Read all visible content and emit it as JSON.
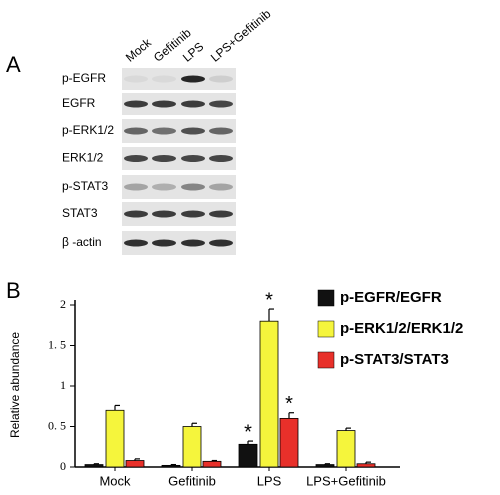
{
  "panel_a": {
    "label": "A",
    "lanes": [
      "Mock",
      "Gefitinib",
      "LPS",
      "LPS+Gefitinib"
    ],
    "rows": [
      "p-EGFR",
      "EGFR",
      "p-ERK1/2",
      "ERK1/2",
      "p-STAT3",
      "STAT3",
      "β -actin"
    ]
  },
  "chart_data": {
    "type": "bar",
    "panel_label": "B",
    "ylabel": "Relative abundance",
    "categories": [
      "Mock",
      "Gefitinib",
      "LPS",
      "LPS+Gefitinib"
    ],
    "series": [
      {
        "name": "p-EGFR/EGFR",
        "color": "#111111",
        "values": [
          0.03,
          0.02,
          0.28,
          0.03
        ],
        "errors": [
          0.01,
          0.01,
          0.04,
          0.01
        ],
        "markers": [
          null,
          null,
          "*",
          null
        ]
      },
      {
        "name": "p-ERK1/2/ERK1/2",
        "color": "#f5f53c",
        "values": [
          0.7,
          0.5,
          1.8,
          0.45
        ],
        "errors": [
          0.06,
          0.04,
          0.15,
          0.03
        ],
        "markers": [
          null,
          null,
          "*",
          null
        ]
      },
      {
        "name": "p-STAT3/STAT3",
        "color": "#e8302a",
        "values": [
          0.08,
          0.07,
          0.6,
          0.04
        ],
        "errors": [
          0.02,
          0.01,
          0.07,
          0.02
        ],
        "markers": [
          null,
          null,
          "*",
          null
        ]
      }
    ],
    "ylim": [
      0,
      2
    ],
    "yticks": [
      0,
      {
        "value": 0.5,
        "label": "0. 5"
      },
      1,
      {
        "value": 1.5,
        "label": "1. 5"
      },
      2
    ]
  }
}
